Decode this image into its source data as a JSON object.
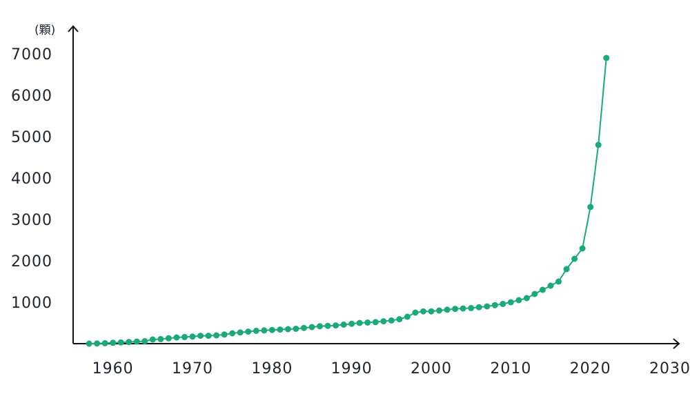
{
  "chart_data": {
    "type": "line",
    "title": "",
    "xlabel": "",
    "ylabel": "(顆)",
    "xlim": [
      1955,
      2030
    ],
    "ylim": [
      0,
      7000
    ],
    "xticks": [
      1960,
      1970,
      1980,
      1990,
      2000,
      2010,
      2020,
      2030
    ],
    "yticks": [
      1000,
      2000,
      3000,
      4000,
      5000,
      6000,
      7000
    ],
    "grid": false,
    "legend": "none",
    "color": "#1aa97c",
    "series": [
      {
        "x": [
          1957,
          1958,
          1959,
          1960,
          1961,
          1962,
          1963,
          1964,
          1965,
          1966,
          1967,
          1968,
          1969,
          1970,
          1971,
          1972,
          1973,
          1974,
          1975,
          1976,
          1977,
          1978,
          1979,
          1980,
          1981,
          1982,
          1983,
          1984,
          1985,
          1986,
          1987,
          1988,
          1989,
          1990,
          1991,
          1992,
          1993,
          1994,
          1995,
          1996,
          1997,
          1998,
          1999,
          2000,
          2001,
          2002,
          2003,
          2004,
          2005,
          2006,
          2007,
          2008,
          2009,
          2010,
          2011,
          2012,
          2013,
          2014,
          2015,
          2016,
          2017,
          2018,
          2019,
          2020,
          2021,
          2022
        ],
        "y": [
          0,
          5,
          10,
          20,
          30,
          40,
          50,
          60,
          100,
          110,
          130,
          150,
          160,
          170,
          190,
          190,
          200,
          220,
          250,
          270,
          290,
          310,
          320,
          330,
          340,
          350,
          360,
          380,
          400,
          420,
          430,
          440,
          460,
          480,
          500,
          510,
          520,
          540,
          560,
          590,
          650,
          750,
          780,
          780,
          800,
          820,
          840,
          850,
          860,
          880,
          900,
          930,
          960,
          1000,
          1050,
          1100,
          1200,
          1300,
          1400,
          1500,
          1800,
          2050,
          2300,
          3300,
          4800,
          6900
        ]
      }
    ]
  }
}
